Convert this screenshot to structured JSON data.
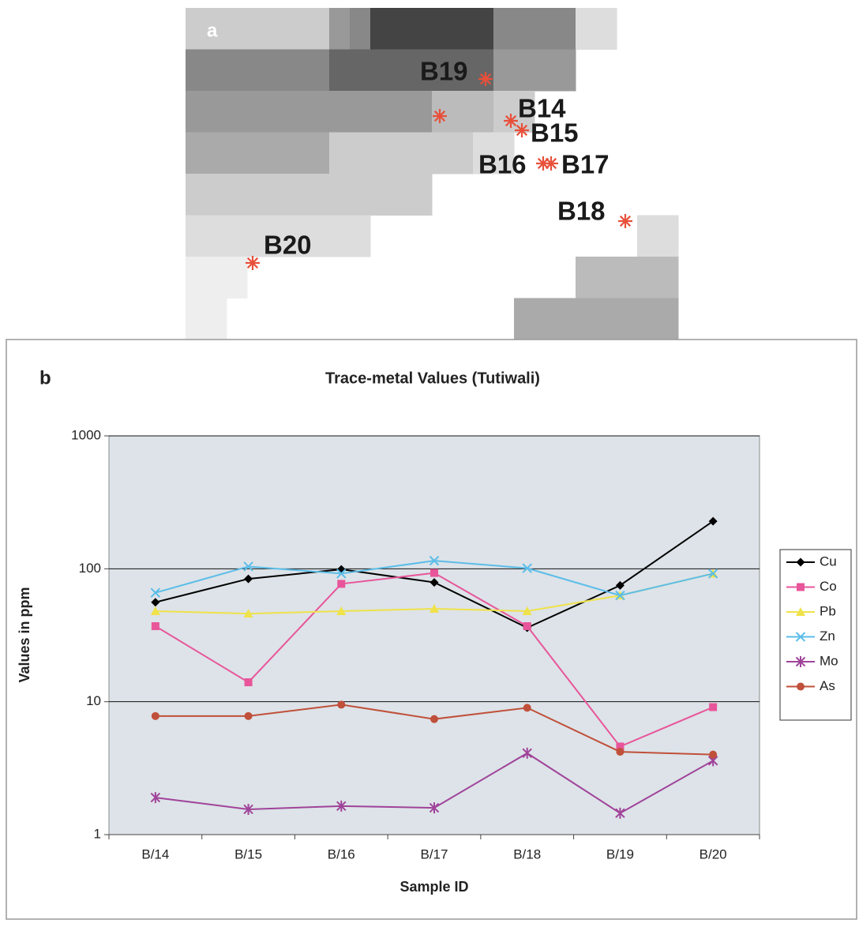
{
  "map": {
    "panel_label": "a",
    "sites": [
      "B19",
      "B14",
      "B15",
      "B16",
      "B17",
      "B18",
      "B20"
    ]
  },
  "chart_data": {
    "type": "line",
    "panel_label": "b",
    "title": "Trace-metal Values (Tutiwali)",
    "x_label": "Sample ID",
    "y_label": "Values in ppm",
    "categories": [
      "B/14",
      "B/15",
      "B/16",
      "B/17",
      "B/18",
      "B/19",
      "B/20"
    ],
    "ylim": [
      1,
      1000
    ],
    "yticks": [
      1,
      10,
      100,
      1000
    ],
    "log_scale": true,
    "grid": true,
    "legend": "right",
    "series": [
      {
        "name": "Cu",
        "color": "#000000",
        "marker": "diamond",
        "values": [
          56,
          84,
          99,
          79,
          36,
          75,
          228
        ]
      },
      {
        "name": "Co",
        "color": "#e8559a",
        "marker": "square",
        "values": [
          37,
          14,
          77,
          93,
          37,
          4.6,
          9.1
        ]
      },
      {
        "name": "Pb",
        "color": "#efe24a",
        "marker": "triangle",
        "values": [
          48,
          46,
          48,
          50,
          48,
          63,
          92
        ]
      },
      {
        "name": "Zn",
        "color": "#5bbde8",
        "marker": "x",
        "values": [
          66,
          104,
          92,
          115,
          101,
          63,
          92
        ]
      },
      {
        "name": "Mo",
        "color": "#a0439a",
        "marker": "star",
        "values": [
          1.9,
          1.55,
          1.64,
          1.59,
          4.1,
          1.45,
          3.6
        ]
      },
      {
        "name": "As",
        "color": "#c0503a",
        "marker": "circle",
        "values": [
          7.8,
          7.8,
          9.5,
          7.4,
          9.0,
          4.2,
          4.0
        ]
      }
    ]
  }
}
